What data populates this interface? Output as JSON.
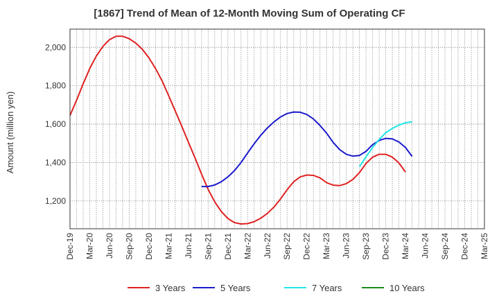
{
  "chart_data": {
    "type": "line",
    "title": "[1867]  Trend of Mean of 12-Month Moving Sum of Operating CF",
    "xlabel": "",
    "ylabel": "Amount (million yen)",
    "ylim": [
      1055,
      2095
    ],
    "yticks": [
      1200,
      1400,
      1600,
      1800,
      2000
    ],
    "ytick_labels": [
      "1,200",
      "1,400",
      "1,600",
      "1,800",
      "2,000"
    ],
    "x_start": "Dec-19",
    "x_end": "Mar-25",
    "x_tick_labels": [
      "Dec-19",
      "Mar-20",
      "Jun-20",
      "Sep-20",
      "Dec-20",
      "Mar-21",
      "Jun-21",
      "Sep-21",
      "Dec-21",
      "Mar-22",
      "Jun-22",
      "Sep-22",
      "Dec-22",
      "Mar-23",
      "Jun-23",
      "Sep-23",
      "Dec-23",
      "Mar-24",
      "Jun-24",
      "Sep-24",
      "Dec-24",
      "Mar-25"
    ],
    "grid": true,
    "legend_position": "bottom",
    "series": [
      {
        "name": "3 Years",
        "color": "#e02020",
        "start_month_index": 0,
        "values": [
          1645,
          1725,
          1810,
          1890,
          1955,
          2005,
          2040,
          2058,
          2058,
          2045,
          2022,
          1990,
          1945,
          1890,
          1825,
          1748,
          1668,
          1588,
          1505,
          1425,
          1340,
          1260,
          1195,
          1145,
          1108,
          1087,
          1080,
          1082,
          1092,
          1110,
          1135,
          1168,
          1210,
          1258,
          1300,
          1325,
          1335,
          1333,
          1320,
          1295,
          1282,
          1280,
          1290,
          1312,
          1348,
          1395,
          1428,
          1443,
          1443,
          1428,
          1398,
          1350
        ]
      },
      {
        "name": "5 Years",
        "color": "#1a1acc",
        "start_month_index": 20,
        "values": [
          1275,
          1275,
          1283,
          1300,
          1325,
          1358,
          1400,
          1450,
          1498,
          1542,
          1580,
          1612,
          1637,
          1655,
          1663,
          1662,
          1650,
          1627,
          1593,
          1553,
          1505,
          1467,
          1443,
          1433,
          1437,
          1458,
          1493,
          1515,
          1526,
          1523,
          1507,
          1478,
          1432
        ]
      },
      {
        "name": "7 Years",
        "color": "#22e5e5",
        "start_month_index": 44,
        "values": [
          1378,
          1430,
          1478,
          1520,
          1555,
          1578,
          1595,
          1607,
          1612
        ]
      },
      {
        "name": "10 Years",
        "color": "#1a8a1a",
        "start_month_index": 0,
        "values": []
      }
    ]
  }
}
